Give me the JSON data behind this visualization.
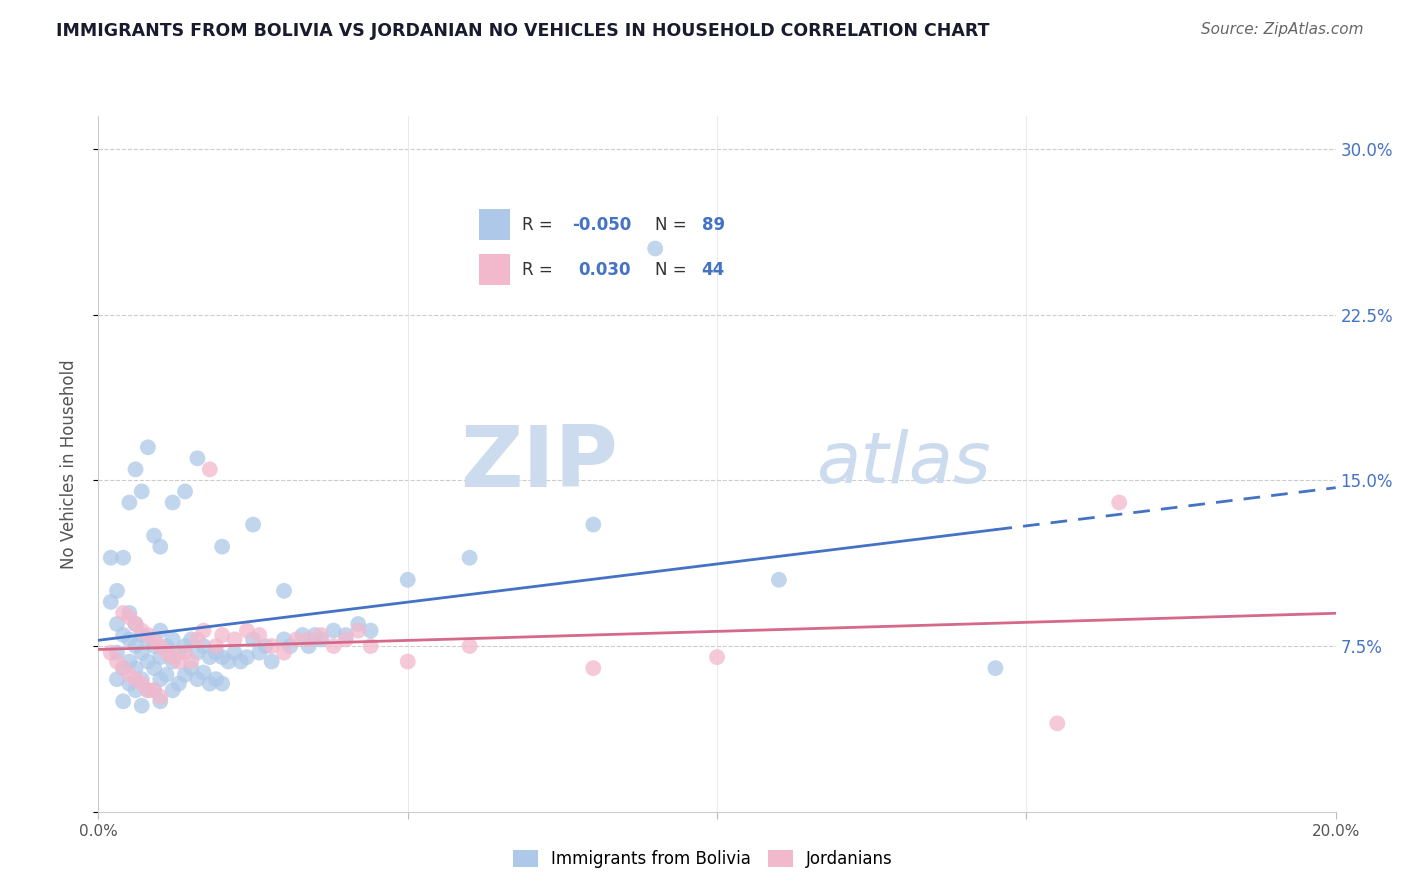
{
  "title": "IMMIGRANTS FROM BOLIVIA VS JORDANIAN NO VEHICLES IN HOUSEHOLD CORRELATION CHART",
  "source": "Source: ZipAtlas.com",
  "ylabel": "No Vehicles in Household",
  "ytick_values": [
    0.0,
    0.075,
    0.15,
    0.225,
    0.3
  ],
  "ytick_labels": [
    "",
    "7.5%",
    "15.0%",
    "22.5%",
    "30.0%"
  ],
  "xlim": [
    0.0,
    0.2
  ],
  "ylim": [
    0.0,
    0.315
  ],
  "r_bolivia": -0.05,
  "n_bolivia": 89,
  "r_jordanian": 0.03,
  "n_jordanian": 44,
  "color_bolivia": "#adc8e8",
  "color_jordanian": "#f2b8cc",
  "line_color_bolivia": "#4472c4",
  "line_color_jordanian": "#d4698a",
  "watermark_zip": "ZIP",
  "watermark_atlas": "atlas",
  "bolivia_scatter_x": [
    0.002,
    0.003,
    0.003,
    0.003,
    0.004,
    0.004,
    0.004,
    0.005,
    0.005,
    0.005,
    0.005,
    0.006,
    0.006,
    0.006,
    0.006,
    0.007,
    0.007,
    0.007,
    0.007,
    0.008,
    0.008,
    0.008,
    0.009,
    0.009,
    0.009,
    0.01,
    0.01,
    0.01,
    0.01,
    0.011,
    0.011,
    0.012,
    0.012,
    0.012,
    0.013,
    0.013,
    0.014,
    0.014,
    0.015,
    0.015,
    0.016,
    0.016,
    0.017,
    0.017,
    0.018,
    0.018,
    0.019,
    0.019,
    0.02,
    0.02,
    0.021,
    0.022,
    0.023,
    0.024,
    0.025,
    0.026,
    0.027,
    0.028,
    0.03,
    0.031,
    0.033,
    0.034,
    0.035,
    0.036,
    0.038,
    0.04,
    0.042,
    0.044,
    0.002,
    0.003,
    0.004,
    0.005,
    0.006,
    0.007,
    0.008,
    0.009,
    0.01,
    0.012,
    0.014,
    0.016,
    0.02,
    0.025,
    0.03,
    0.05,
    0.06,
    0.09,
    0.11,
    0.145,
    0.08
  ],
  "bolivia_scatter_y": [
    0.095,
    0.085,
    0.072,
    0.06,
    0.08,
    0.065,
    0.05,
    0.09,
    0.078,
    0.068,
    0.058,
    0.085,
    0.075,
    0.065,
    0.055,
    0.08,
    0.072,
    0.06,
    0.048,
    0.078,
    0.068,
    0.055,
    0.075,
    0.065,
    0.055,
    0.082,
    0.07,
    0.06,
    0.05,
    0.075,
    0.062,
    0.078,
    0.068,
    0.055,
    0.072,
    0.058,
    0.075,
    0.062,
    0.078,
    0.065,
    0.072,
    0.06,
    0.075,
    0.063,
    0.07,
    0.058,
    0.072,
    0.06,
    0.07,
    0.058,
    0.068,
    0.072,
    0.068,
    0.07,
    0.078,
    0.072,
    0.075,
    0.068,
    0.078,
    0.075,
    0.08,
    0.075,
    0.08,
    0.078,
    0.082,
    0.08,
    0.085,
    0.082,
    0.115,
    0.1,
    0.115,
    0.14,
    0.155,
    0.145,
    0.165,
    0.125,
    0.12,
    0.14,
    0.145,
    0.16,
    0.12,
    0.13,
    0.1,
    0.105,
    0.115,
    0.255,
    0.105,
    0.065,
    0.13
  ],
  "jordanian_scatter_x": [
    0.002,
    0.003,
    0.004,
    0.004,
    0.005,
    0.005,
    0.006,
    0.006,
    0.007,
    0.007,
    0.008,
    0.008,
    0.009,
    0.009,
    0.01,
    0.01,
    0.011,
    0.012,
    0.013,
    0.014,
    0.015,
    0.016,
    0.017,
    0.018,
    0.019,
    0.02,
    0.022,
    0.024,
    0.026,
    0.028,
    0.03,
    0.032,
    0.034,
    0.036,
    0.038,
    0.04,
    0.042,
    0.044,
    0.05,
    0.06,
    0.08,
    0.1,
    0.155,
    0.165
  ],
  "jordanian_scatter_y": [
    0.072,
    0.068,
    0.09,
    0.065,
    0.088,
    0.062,
    0.085,
    0.06,
    0.082,
    0.058,
    0.08,
    0.055,
    0.078,
    0.055,
    0.075,
    0.052,
    0.072,
    0.07,
    0.068,
    0.072,
    0.068,
    0.078,
    0.082,
    0.155,
    0.075,
    0.08,
    0.078,
    0.082,
    0.08,
    0.075,
    0.072,
    0.078,
    0.078,
    0.08,
    0.075,
    0.078,
    0.082,
    0.075,
    0.068,
    0.075,
    0.065,
    0.07,
    0.04,
    0.14
  ]
}
